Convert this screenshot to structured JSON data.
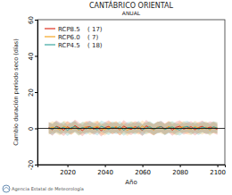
{
  "chart_data": {
    "type": "line",
    "title": "CANTÁBRICO ORIENTAL",
    "subtitle": "ANUAL",
    "x_label": "Año",
    "y_label": "Cambio duración periodo seco (días)",
    "footer": "Agencia Estatal de Meteorología",
    "xlim": [
      2004,
      2104
    ],
    "xticks": [
      2020,
      2040,
      2060,
      2080,
      2100
    ],
    "ylim": [
      -20,
      60
    ],
    "yticks": [
      -20,
      0,
      20,
      40,
      60
    ],
    "hline": 0,
    "grid": false,
    "legend": "upper left",
    "x": [
      2010,
      2012,
      2014,
      2016,
      2018,
      2020,
      2022,
      2024,
      2026,
      2028,
      2030,
      2032,
      2034,
      2036,
      2038,
      2040,
      2042,
      2044,
      2046,
      2048,
      2050,
      2052,
      2054,
      2056,
      2058,
      2060,
      2062,
      2064,
      2066,
      2068,
      2070,
      2072,
      2074,
      2076,
      2078,
      2080,
      2082,
      2084,
      2086,
      2088,
      2090,
      2092,
      2094,
      2096,
      2098,
      2100
    ],
    "series": [
      {
        "name": "RCP8.5",
        "models_label": "( 17)",
        "color": "#e0301e",
        "values": [
          0.5,
          -0.8,
          1.2,
          0.3,
          -1.0,
          0.9,
          -0.4,
          1.5,
          0.2,
          -1.2,
          0.6,
          1.0,
          -0.5,
          0.8,
          -1.3,
          0.4,
          1.1,
          -0.2,
          0.7,
          -0.9,
          1.3,
          0.1,
          -0.6,
          0.9,
          0.3,
          -1.1,
          1.4,
          0.2,
          -0.7,
          0.5,
          1.0,
          -0.3,
          0.8,
          -1.0,
          0.6,
          1.2,
          -0.4,
          0.3,
          0.9,
          -0.8,
          0.5,
          1.1,
          -0.2,
          0.7,
          0.4,
          -0.6
        ],
        "upper": [
          3.6,
          2.4,
          4.5,
          3.2,
          2.1,
          4.1,
          2.9,
          4.8,
          3.3,
          1.9,
          3.8,
          4.2,
          2.6,
          3.9,
          1.8,
          3.5,
          4.4,
          2.8,
          3.7,
          2.2,
          4.6,
          3.0,
          2.5,
          4.0,
          3.4,
          2.0,
          4.7,
          3.1,
          2.3,
          3.6,
          4.1,
          2.7,
          3.9,
          2.2,
          3.7,
          4.5,
          2.6,
          3.3,
          4.0,
          2.3,
          3.5,
          4.3,
          2.9,
          3.8,
          3.5,
          2.4
        ],
        "lower": [
          -2.6,
          -4.1,
          -1.9,
          -2.8,
          -4.2,
          -2.1,
          -3.5,
          -1.6,
          -2.9,
          -4.3,
          -2.5,
          -2.0,
          -3.6,
          -2.3,
          -4.4,
          -2.7,
          -1.9,
          -3.3,
          -2.4,
          -4.0,
          -1.8,
          -3.0,
          -3.7,
          -2.2,
          -2.8,
          -4.2,
          -1.7,
          -2.9,
          -3.8,
          -2.6,
          -2.1,
          -3.4,
          -2.3,
          -4.1,
          -2.5,
          -1.9,
          -3.5,
          -2.8,
          -2.2,
          -3.9,
          -2.6,
          -2.0,
          -3.3,
          -2.4,
          -2.7,
          -3.6
        ]
      },
      {
        "name": "RCP6.0",
        "models_label": "( 7)",
        "color": "#f5a623",
        "values": [
          -0.3,
          0.7,
          0.2,
          -0.9,
          1.1,
          0.4,
          -0.5,
          0.8,
          -1.0,
          0.3,
          0.9,
          -0.6,
          0.5,
          1.2,
          -0.2,
          -0.8,
          0.6,
          0.1,
          1.0,
          -0.7,
          0.4,
          -1.1,
          0.8,
          0.2,
          -0.4,
          1.3,
          -0.3,
          0.6,
          -0.9,
          0.7,
          0.1,
          -0.5,
          1.0,
          0.3,
          -0.8,
          0.5,
          0.9,
          -0.2,
          -0.6,
          1.1,
          0.2,
          -0.4,
          0.8,
          -1.0,
          0.6,
          0.3
        ],
        "upper": [
          2.8,
          3.9,
          3.3,
          2.1,
          4.2,
          3.6,
          2.6,
          3.9,
          2.0,
          3.4,
          4.0,
          2.5,
          3.7,
          4.3,
          2.9,
          2.3,
          3.8,
          3.2,
          4.1,
          2.4,
          3.5,
          1.9,
          3.9,
          3.3,
          2.7,
          4.4,
          2.8,
          3.7,
          2.2,
          3.8,
          3.2,
          2.6,
          4.1,
          3.4,
          2.3,
          3.6,
          4.0,
          2.9,
          2.5,
          4.2,
          3.3,
          2.7,
          3.9,
          2.1,
          3.7,
          3.4
        ],
        "lower": [
          -3.4,
          -2.4,
          -2.9,
          -4.0,
          -2.0,
          -2.7,
          -3.6,
          -2.3,
          -4.1,
          -2.8,
          -2.2,
          -3.7,
          -2.6,
          -1.9,
          -3.3,
          -3.9,
          -2.5,
          -3.0,
          -2.1,
          -3.8,
          -2.7,
          -4.2,
          -2.3,
          -2.9,
          -3.5,
          -1.8,
          -3.4,
          -2.5,
          -4.0,
          -2.4,
          -3.0,
          -3.6,
          -2.1,
          -2.8,
          -3.9,
          -2.6,
          -2.2,
          -3.3,
          -3.7,
          -2.0,
          -2.9,
          -3.5,
          -2.3,
          -4.1,
          -2.5,
          -2.8
        ]
      },
      {
        "name": "RCP4.5",
        "models_label": "( 18)",
        "color": "#3aa6a0",
        "values": [
          0.2,
          -0.5,
          0.9,
          -0.2,
          0.6,
          -1.1,
          0.4,
          1.0,
          -0.7,
          0.5,
          -0.3,
          0.8,
          0.1,
          -0.9,
          1.2,
          0.3,
          -0.6,
          0.7,
          -0.1,
          0.9,
          -1.0,
          0.4,
          0.6,
          -0.4,
          1.1,
          -0.8,
          0.2,
          0.9,
          -0.5,
          0.3,
          1.0,
          -0.7,
          0.4,
          0.8,
          -0.3,
          -0.9,
          0.6,
          1.1,
          -0.2,
          0.5,
          -0.6,
          0.7,
          0.2,
          -0.4,
          0.9,
          0.1
        ],
        "upper": [
          3.3,
          2.6,
          4.0,
          2.9,
          3.7,
          2.0,
          3.5,
          4.1,
          2.4,
          3.6,
          2.8,
          3.9,
          3.2,
          2.2,
          4.3,
          3.4,
          2.5,
          3.8,
          3.0,
          4.0,
          2.1,
          3.5,
          3.7,
          2.7,
          4.2,
          2.3,
          3.3,
          4.0,
          2.6,
          3.4,
          4.1,
          2.4,
          3.5,
          3.9,
          2.8,
          2.2,
          3.7,
          4.2,
          2.9,
          3.6,
          2.5,
          3.8,
          3.3,
          2.7,
          4.0,
          3.2
        ],
        "lower": [
          -2.9,
          -3.6,
          -2.2,
          -3.3,
          -2.5,
          -4.2,
          -2.7,
          -2.1,
          -3.8,
          -2.6,
          -3.4,
          -2.3,
          -3.0,
          -4.0,
          -1.9,
          -2.8,
          -3.7,
          -2.4,
          -3.2,
          -2.2,
          -4.1,
          -2.7,
          -2.5,
          -3.5,
          -2.0,
          -3.9,
          -2.9,
          -2.2,
          -3.6,
          -2.8,
          -2.1,
          -3.8,
          -2.7,
          -2.3,
          -3.4,
          -4.0,
          -2.5,
          -2.0,
          -3.3,
          -2.6,
          -3.7,
          -2.4,
          -2.9,
          -3.5,
          -2.2,
          -3.0
        ]
      }
    ]
  }
}
